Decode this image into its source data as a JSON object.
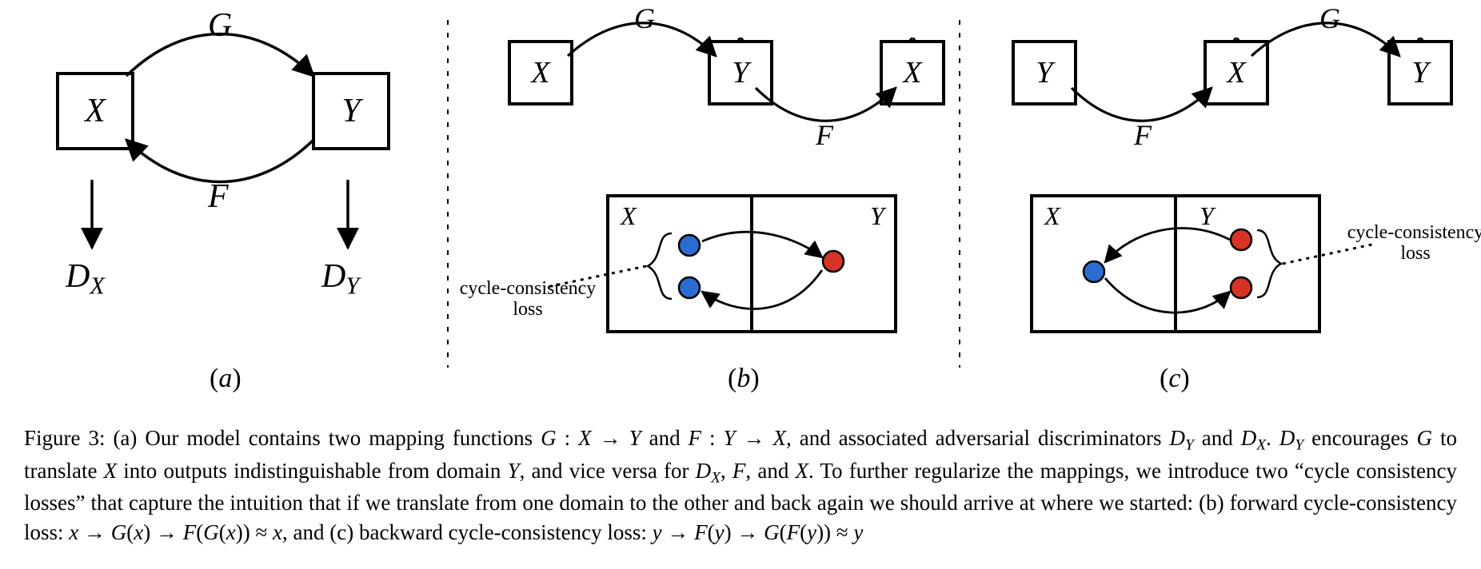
{
  "panel_a": {
    "label": "(a)",
    "X": "X",
    "Y": "Y",
    "G": "G",
    "F": "F",
    "DX_html": "<span class='mi'>D</span><span class='sub'>X</span>",
    "DY_html": "<span class='mi'>D</span><span class='sub'>Y</span>",
    "box_size": 90,
    "line_w": 3.5
  },
  "panel_b": {
    "label": "(b)",
    "X": "X",
    "Yhat": "Y",
    "Xhat": "X",
    "G": "G",
    "F": "F",
    "loss": "cycle-consistency<br>loss",
    "bigX": "X",
    "bigY": "Y"
  },
  "panel_c": {
    "label": "(c)",
    "Y": "Y",
    "Xhat": "X",
    "Yhat": "Y",
    "G": "G",
    "F": "F",
    "loss": "cycle-consistency<br>loss",
    "bigX": "X",
    "bigY": "Y"
  },
  "caption_html": "Figure 3: (a) Our model contains two mapping functions <span class='mi'>G</span> : <span class='mi'>X</span> → <span class='mi'>Y</span> and <span class='mi'>F</span> : <span class='mi'>Y</span> → <span class='mi'>X</span>, and associated adversarial discriminators <span class='mi'>D</span><span class='sub'>Y</span> and <span class='mi'>D</span><span class='sub'>X</span>. <span class='mi'>D</span><span class='sub'>Y</span> encourages <span class='mi'>G</span> to translate <span class='mi'>X</span> into outputs indistinguishable from domain <span class='mi'>Y</span>, and vice versa for <span class='mi'>D</span><span class='sub'>X</span>, <span class='mi'>F</span>, and <span class='mi'>X</span>. To further regularize the mappings, we introduce two “cycle consistency losses” that capture the intuition that if we translate from one domain to the other and back again we should arrive at where we started: (b) forward cycle-consistency loss: <span class='mi'>x</span> → <span class='mi'>G</span>(<span class='mi'>x</span>) → <span class='mi'>F</span>(<span class='mi'>G</span>(<span class='mi'>x</span>)) ≈ <span class='mi'>x</span>, and (c) backward cycle-consistency loss: <span class='mi'>y</span> → <span class='mi'>F</span>(<span class='mi'>y</span>) → <span class='mi'>G</span>(<span class='mi'>F</span>(<span class='mi'>y</span>)) ≈ <span class='mi'>y</span>",
  "style": {
    "dot_r": 13,
    "sep_dash": "6,10",
    "arrow_w": 3.2
  }
}
